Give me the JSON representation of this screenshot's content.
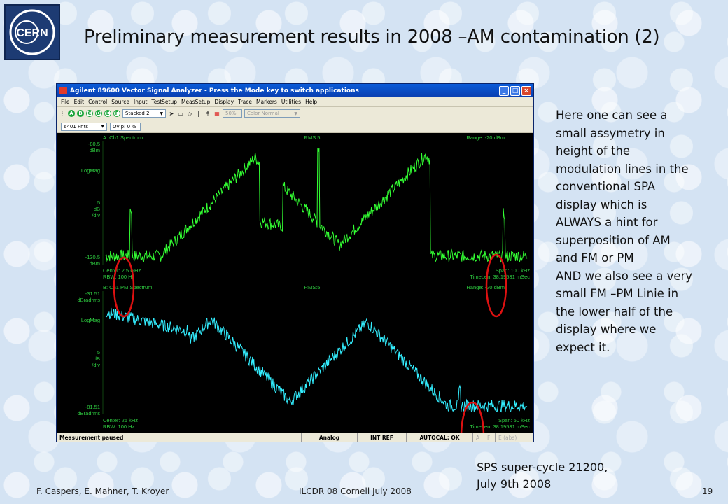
{
  "slide": {
    "title": "Preliminary measurement results in 2008 –AM contamination (2)",
    "logo_text": "CERN",
    "notes": "Here one can see a\nsmall assymetry in\nheight of the\nmodulation lines in the\nconventional SPA\ndisplay which is\nALWAYS a hint for\nsuperposition of AM\nand FM or PM\nAND we also see a very\nsmall FM –PM Linie in\nthe lower half of the\ndisplay where we\nexpect it.",
    "sps_caption": "SPS super-cycle 21200,\nJuly 9th 2008",
    "footer": {
      "authors": "F. Caspers, E. Mahner, T. Kroyer",
      "event": "ILCDR 08 Cornell July 2008",
      "page": "19"
    }
  },
  "app": {
    "title": "Agilent 89600 Vector Signal Analyzer - Press the Mode key to switch applications",
    "menu": [
      "File",
      "Edit",
      "Control",
      "Source",
      "Input",
      "TestSetup",
      "MeasSetup",
      "Display",
      "Trace",
      "Markers",
      "Utilities",
      "Help"
    ],
    "trace_buttons": [
      "A",
      "B",
      "C",
      "D",
      "E",
      "F"
    ],
    "layout_select": "Stacked 2",
    "opacity_value": "50%",
    "color_select": "Color Normal",
    "points_select": "6401 Pnts",
    "overlap": "Ovlp: 0 %",
    "status": {
      "message": "Measurement paused",
      "analog": "Analog",
      "ref": "INT REF",
      "autocal": "AUTOCAL: OK",
      "flags": [
        "A",
        "F",
        "E (abs)"
      ]
    }
  },
  "colors": {
    "trace_a": "#33ff33",
    "trace_b": "#33eeff",
    "annotation": "#dd1111",
    "plot_text": "#2ecc40"
  },
  "traces": [
    {
      "header": "A: Ch1 Spectrum",
      "rms": "RMS:5",
      "range": "Range: -20 dBm",
      "y_top": "-80.5",
      "y_top_unit": "dBm",
      "scale_name": "LogMag",
      "scale_per_div": "5",
      "scale_unit": "dB",
      "scale_div": "/div",
      "y_bottom": "-130.5",
      "y_bottom_unit": "dBm",
      "center": "Center: 2.5 GHz",
      "rbw": "RBW: 100 Hz",
      "span": "Span: 100 kHz",
      "timelen": "TimeLen: 38.19531 mSec",
      "ylim": [
        -130.5,
        -80.5
      ],
      "noise_floor": -127,
      "peaks": [
        {
          "x": 0.06,
          "level": -108,
          "sharp": true
        },
        {
          "x": 0.355,
          "level": -87,
          "sharp": false
        },
        {
          "x": 0.505,
          "level": -83,
          "sharp": true
        },
        {
          "x": 0.76,
          "level": -86,
          "sharp": false
        },
        {
          "x": 0.945,
          "level": -110,
          "sharp": true
        }
      ]
    },
    {
      "header": "B: Ch1 PM Spectrum",
      "rms": "RMS:5",
      "range": "Range: -20 dBm",
      "y_top": "-31.51",
      "y_top_unit": "dBradrms",
      "scale_name": "LogMag",
      "scale_per_div": "5",
      "scale_unit": "dB",
      "scale_div": "/div",
      "y_bottom": "-81.51",
      "y_bottom_unit": "dBradrms",
      "center": "Center: 25 kHz",
      "rbw": "RBW: 100 Hz",
      "span": "Span: 50 kHz",
      "timelen": "TimeLen: 38.19531 mSec",
      "ylim": [
        -81.51,
        -31.51
      ],
      "noise_floor": -78,
      "peaks": [
        {
          "x": 0.25,
          "level": -43,
          "sharp": false
        },
        {
          "x": 0.62,
          "level": -44,
          "sharp": false
        },
        {
          "x": 0.84,
          "level": -72,
          "sharp": true
        }
      ]
    }
  ]
}
